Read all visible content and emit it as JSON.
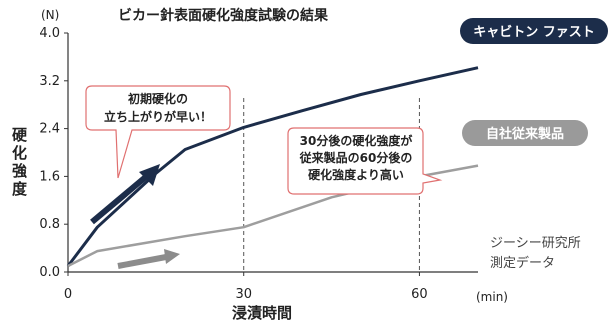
{
  "chart_data": {
    "type": "line",
    "title": "ビカー針表面硬化強度試験の結果",
    "y_unit": "(N)",
    "x_unit": "(min)",
    "xlabel": "浸漬時間",
    "ylabel": "硬化強度",
    "xlim": [
      0,
      70
    ],
    "ylim": [
      0,
      4.0
    ],
    "x_ticks": [
      "0",
      "30",
      "60"
    ],
    "y_ticks": [
      "0.0",
      "0.8",
      "1.6",
      "2.4",
      "3.2",
      "4.0"
    ],
    "series": [
      {
        "name": "キャビトン ファスト",
        "color": "#1c2d4a",
        "points": [
          [
            0,
            0.1
          ],
          [
            5,
            0.75
          ],
          [
            10,
            1.2
          ],
          [
            15,
            1.65
          ],
          [
            20,
            2.05
          ],
          [
            30,
            2.42
          ],
          [
            40,
            2.7
          ],
          [
            50,
            2.97
          ],
          [
            60,
            3.2
          ],
          [
            70,
            3.42
          ]
        ]
      },
      {
        "name": "自社従来製品",
        "color": "#9e9e9e",
        "points": [
          [
            0,
            0.1
          ],
          [
            5,
            0.35
          ],
          [
            20,
            0.6
          ],
          [
            30,
            0.75
          ],
          [
            45,
            1.25
          ],
          [
            60,
            1.6
          ],
          [
            70,
            1.78
          ]
        ]
      }
    ],
    "reference_lines_x": [
      30,
      60
    ],
    "annotations": [
      {
        "text_line1": "初期硬化の",
        "text_line2": "立ち上がりが早い！"
      },
      {
        "text_line1": "30分後の硬化強度が",
        "text_line2": "従来製品の60分後の",
        "text_line3": "硬化強度より高い"
      }
    ],
    "source_line1": "ジーシー研究所",
    "source_line2": "測定データ"
  }
}
